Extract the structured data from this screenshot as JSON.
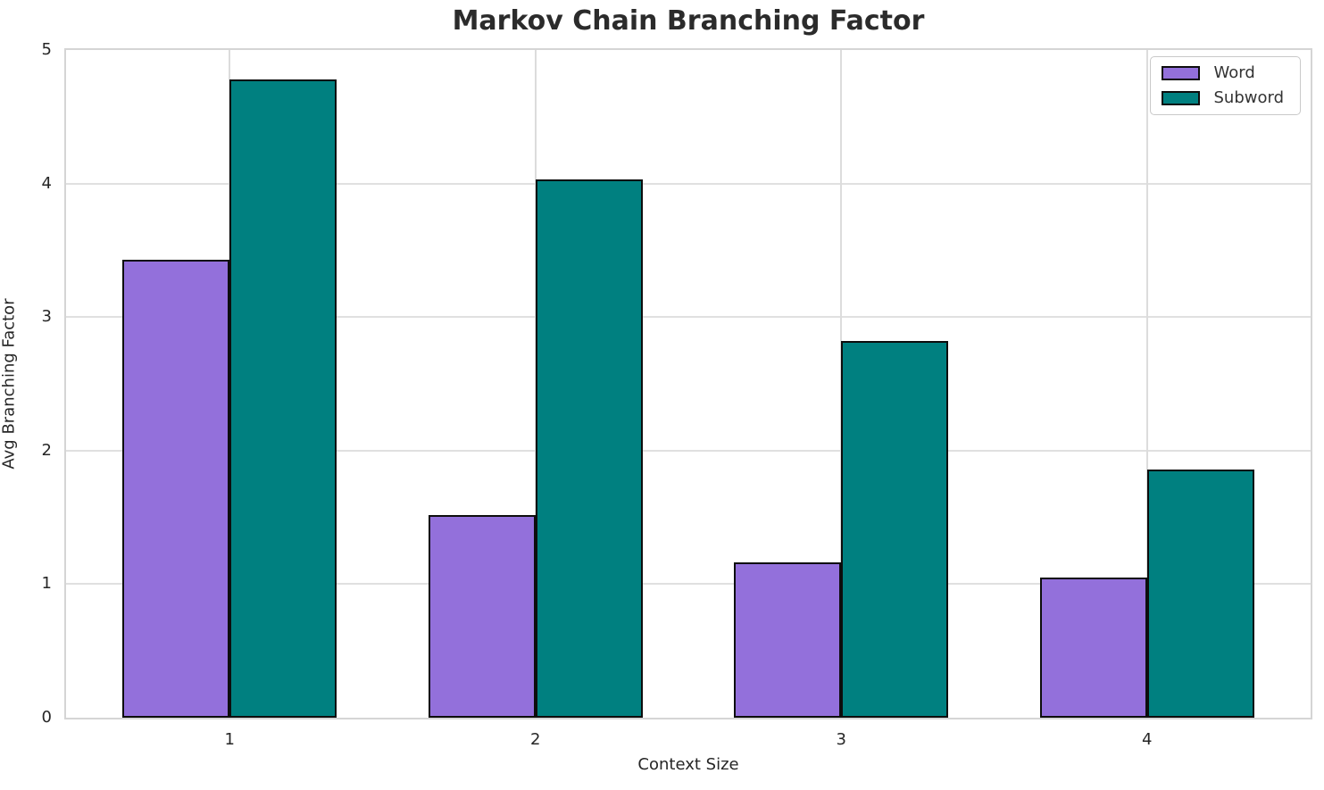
{
  "chart_data": {
    "type": "bar",
    "title": "Markov Chain Branching Factor",
    "xlabel": "Context Size",
    "ylabel": "Avg Branching Factor",
    "categories": [
      "1",
      "2",
      "3",
      "4"
    ],
    "x_positions": [
      1,
      2,
      3,
      4
    ],
    "series": [
      {
        "name": "Word",
        "color": "#9370DB",
        "values": [
          3.43,
          1.52,
          1.16,
          1.05
        ]
      },
      {
        "name": "Subword",
        "color": "#008080",
        "values": [
          4.78,
          4.03,
          2.82,
          1.86
        ]
      }
    ],
    "ylim": [
      0,
      5
    ],
    "yticks": [
      0,
      1,
      2,
      3,
      4,
      5
    ],
    "xlim": [
      0.465,
      4.535
    ],
    "bar_width_units": 0.35,
    "bar_edge_color": "#0d0d0d",
    "grid": true,
    "grid_color": "#e0e0e0",
    "spine_color": "#d5d5d5",
    "legend_position": "upper right"
  }
}
